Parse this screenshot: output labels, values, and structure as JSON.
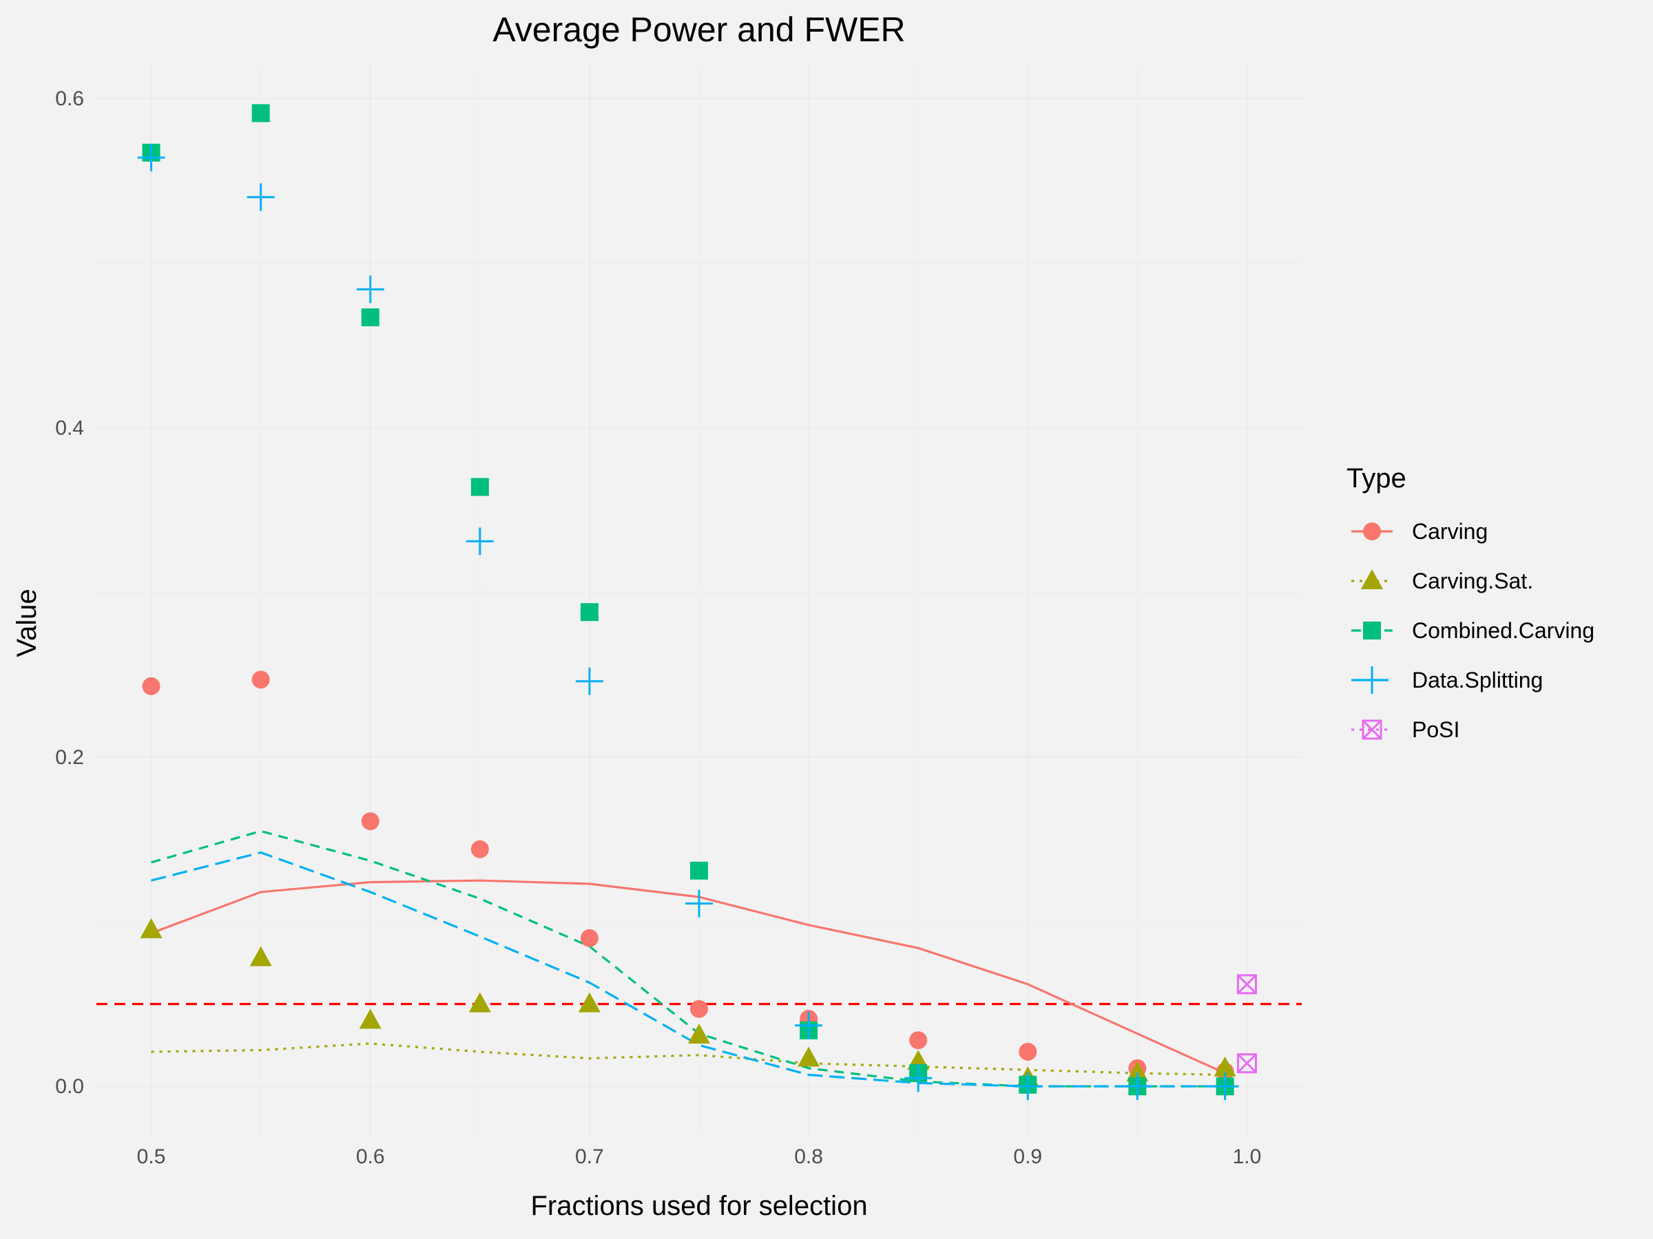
{
  "chart_data": {
    "type": "scatter",
    "title": "Average Power and FWER",
    "xlabel": "Fractions used for selection",
    "ylabel": "Value",
    "xlim": [
      0.475,
      1.025
    ],
    "ylim": [
      -0.03,
      0.62
    ],
    "x_ticks": [
      "0.5",
      "0.6",
      "0.7",
      "0.8",
      "0.9",
      "1.0"
    ],
    "y_ticks": [
      "0.0",
      "0.2",
      "0.4",
      "0.6"
    ],
    "grid": true,
    "legend_title": "Type",
    "legend_position": "right",
    "reference_line": {
      "y": 0.05,
      "color": "#ff0000",
      "style": "dashed"
    },
    "series": [
      {
        "name": "Carving",
        "color": "#F8766D",
        "marker": "circle",
        "linetype": "solid",
        "points": [
          [
            0.5,
            0.243
          ],
          [
            0.55,
            0.247
          ],
          [
            0.6,
            0.161
          ],
          [
            0.65,
            0.144
          ],
          [
            0.7,
            0.09
          ],
          [
            0.75,
            0.047
          ],
          [
            0.8,
            0.041
          ],
          [
            0.85,
            0.028
          ],
          [
            0.9,
            0.021
          ],
          [
            0.95,
            0.011
          ],
          [
            0.99,
            0.009
          ]
        ],
        "line": [
          [
            0.5,
            0.093
          ],
          [
            0.55,
            0.118
          ],
          [
            0.6,
            0.124
          ],
          [
            0.65,
            0.125
          ],
          [
            0.7,
            0.123
          ],
          [
            0.75,
            0.115
          ],
          [
            0.8,
            0.098
          ],
          [
            0.85,
            0.084
          ],
          [
            0.9,
            0.062
          ],
          [
            0.95,
            0.032
          ],
          [
            0.99,
            0.008
          ]
        ]
      },
      {
        "name": "Carving.Sat.",
        "color": "#A3A500",
        "marker": "triangle",
        "linetype": "dotted",
        "points": [
          [
            0.5,
            0.095
          ],
          [
            0.55,
            0.078
          ],
          [
            0.6,
            0.04
          ],
          [
            0.65,
            0.05
          ],
          [
            0.7,
            0.05
          ],
          [
            0.75,
            0.031
          ],
          [
            0.8,
            0.017
          ],
          [
            0.85,
            0.015
          ],
          [
            0.9,
            0.005
          ],
          [
            0.95,
            0.008
          ],
          [
            0.99,
            0.011
          ]
        ],
        "line": [
          [
            0.5,
            0.021
          ],
          [
            0.55,
            0.022
          ],
          [
            0.6,
            0.026
          ],
          [
            0.65,
            0.021
          ],
          [
            0.7,
            0.017
          ],
          [
            0.75,
            0.019
          ],
          [
            0.8,
            0.014
          ],
          [
            0.85,
            0.012
          ],
          [
            0.9,
            0.01
          ],
          [
            0.95,
            0.008
          ],
          [
            0.99,
            0.007
          ]
        ]
      },
      {
        "name": "Combined.Carving",
        "color": "#00BF7D",
        "marker": "square",
        "linetype": "dashed",
        "points": [
          [
            0.5,
            0.567
          ],
          [
            0.55,
            0.591
          ],
          [
            0.6,
            0.467
          ],
          [
            0.65,
            0.364
          ],
          [
            0.7,
            0.288
          ],
          [
            0.75,
            0.131
          ],
          [
            0.8,
            0.034
          ],
          [
            0.85,
            0.008
          ],
          [
            0.9,
            0.001
          ],
          [
            0.95,
            0.0
          ],
          [
            0.99,
            0.0
          ]
        ],
        "line": [
          [
            0.5,
            0.136
          ],
          [
            0.55,
            0.155
          ],
          [
            0.6,
            0.137
          ],
          [
            0.65,
            0.114
          ],
          [
            0.7,
            0.085
          ],
          [
            0.75,
            0.032
          ],
          [
            0.8,
            0.011
          ],
          [
            0.85,
            0.003
          ],
          [
            0.9,
            0.0
          ],
          [
            0.95,
            0.0
          ],
          [
            0.99,
            0.0
          ]
        ]
      },
      {
        "name": "Data.Splitting",
        "color": "#00B0F6",
        "marker": "plus",
        "linetype": "longdash",
        "points": [
          [
            0.5,
            0.564
          ],
          [
            0.55,
            0.54
          ],
          [
            0.6,
            0.484
          ],
          [
            0.65,
            0.331
          ],
          [
            0.7,
            0.246
          ],
          [
            0.75,
            0.111
          ],
          [
            0.8,
            0.037
          ],
          [
            0.85,
            0.005
          ],
          [
            0.9,
            0.0
          ],
          [
            0.95,
            0.0
          ],
          [
            0.99,
            0.0
          ]
        ],
        "line": [
          [
            0.5,
            0.125
          ],
          [
            0.55,
            0.142
          ],
          [
            0.6,
            0.118
          ],
          [
            0.65,
            0.091
          ],
          [
            0.7,
            0.063
          ],
          [
            0.75,
            0.025
          ],
          [
            0.8,
            0.007
          ],
          [
            0.85,
            0.002
          ],
          [
            0.9,
            0.0
          ],
          [
            0.95,
            0.0
          ],
          [
            0.99,
            0.0
          ]
        ]
      },
      {
        "name": "PoSI",
        "color": "#E76BF3",
        "marker": "square-x",
        "linetype": "dotted",
        "points": [
          [
            1.0,
            0.062
          ],
          [
            1.0,
            0.014
          ]
        ],
        "line": []
      }
    ]
  }
}
